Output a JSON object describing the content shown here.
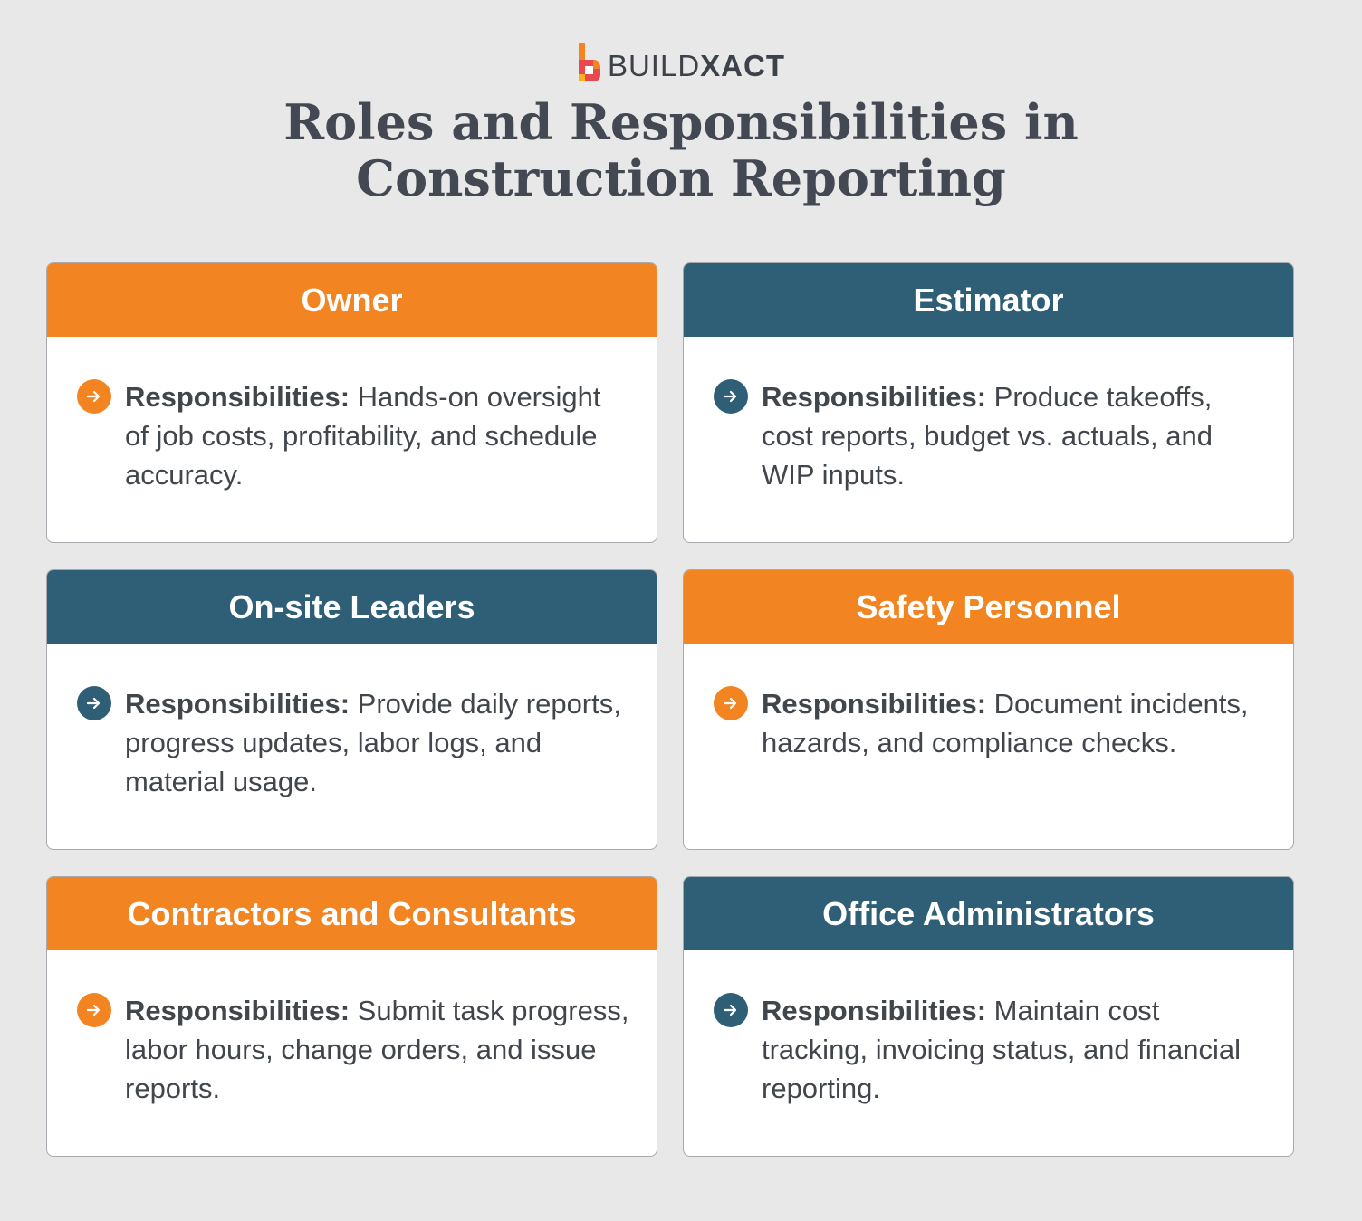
{
  "brand": {
    "name_light": "BUILD",
    "name_bold": "XACT",
    "colors": [
      "#f28522",
      "#e8484f",
      "#f7b21b"
    ]
  },
  "title": {
    "line1": "Roles and Responsibilities in",
    "line2": "Construction Reporting"
  },
  "colors": {
    "orange": "#f28522",
    "blue": "#2e5f77",
    "background": "#e7e8e7",
    "text": "#41454c"
  },
  "bullet_icon": "arrow-right-icon",
  "cards": [
    {
      "role": "Owner",
      "color": "orange",
      "label": "Responsibilities:",
      "text": "Hands-on oversight of job costs, profitability, and schedule accuracy."
    },
    {
      "role": "Estimator",
      "color": "blue",
      "label": "Responsibilities:",
      "text": "Produce takeoffs, cost reports, budget vs. actuals, and WIP inputs."
    },
    {
      "role": "On-site Leaders",
      "color": "blue",
      "label": "Responsibilities:",
      "text": "Provide daily reports, progress updates, labor logs, and material usage."
    },
    {
      "role": "Safety Personnel",
      "color": "orange",
      "label": "Responsibilities:",
      "text": "Document incidents, hazards, and compliance checks."
    },
    {
      "role": "Contractors and Consultants",
      "color": "orange",
      "label": "Responsibilities:",
      "text": "Submit task progress, labor hours, change orders, and issue reports."
    },
    {
      "role": "Office Administrators",
      "color": "blue",
      "label": "Responsibilities:",
      "text": "Maintain cost tracking, invoicing status, and financial reporting."
    }
  ]
}
